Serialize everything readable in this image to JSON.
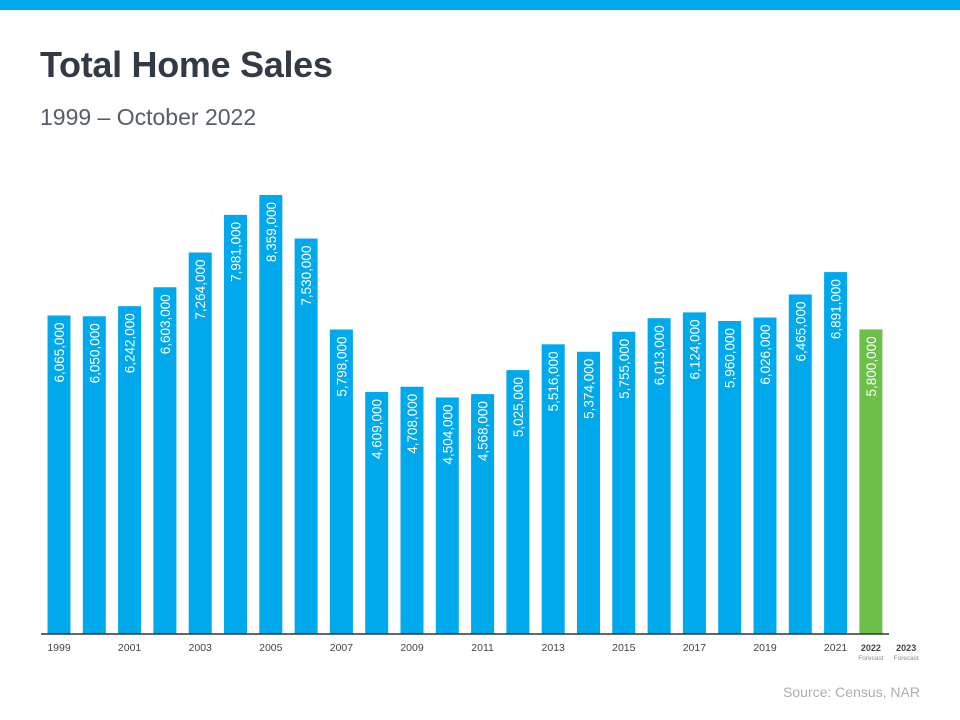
{
  "header": {
    "title": "Total Home Sales",
    "subtitle": "1999 – October 2022"
  },
  "footer": {
    "source": "Source: Census, NAR"
  },
  "colors": {
    "actual": "#00a8ec",
    "forecast": "#6cc04a",
    "axis": "#333333",
    "tick_text": "#444444",
    "stripe": "#00a8ec"
  },
  "chart_data": {
    "type": "bar",
    "title": "Total Home Sales",
    "subtitle": "1999 – October 2022",
    "categories": [
      "1999",
      "2000",
      "2001",
      "2002",
      "2003",
      "2004",
      "2005",
      "2006",
      "2007",
      "2008",
      "2009",
      "2010",
      "2011",
      "2012",
      "2013",
      "2014",
      "2015",
      "2016",
      "2017",
      "2018",
      "2019",
      "2020",
      "2021",
      "2022",
      "2023"
    ],
    "values": [
      6065000,
      6050000,
      6242000,
      6603000,
      7264000,
      7981000,
      8359000,
      7530000,
      5798000,
      4609000,
      4708000,
      4504000,
      4568000,
      5025000,
      5516000,
      5374000,
      5755000,
      6013000,
      6124000,
      5960000,
      6026000,
      6465000,
      6891000,
      5800000,
      null
    ],
    "value_labels": [
      "6,065,000",
      "6,050,000",
      "6,242,000",
      "6,603,000",
      "7,264,000",
      "7,981,000",
      "8,359,000",
      "7,530,000",
      "5,798,000",
      "4,609,000",
      "4,708,000",
      "4,504,000",
      "4,568,000",
      "5,025,000",
      "5,516,000",
      "5,374,000",
      "5,755,000",
      "6,013,000",
      "6,124,000",
      "5,960,000",
      "6,026,000",
      "6,465,000",
      "6,891,000",
      "5,800,000",
      ""
    ],
    "forecast": [
      false,
      false,
      false,
      false,
      false,
      false,
      false,
      false,
      false,
      false,
      false,
      false,
      false,
      false,
      false,
      false,
      false,
      false,
      false,
      false,
      false,
      false,
      false,
      true,
      true
    ],
    "tick_labels": [
      {
        "index": 0,
        "label": "1999"
      },
      {
        "index": 2,
        "label": "2001"
      },
      {
        "index": 4,
        "label": "2003"
      },
      {
        "index": 6,
        "label": "2005"
      },
      {
        "index": 8,
        "label": "2007"
      },
      {
        "index": 10,
        "label": "2009"
      },
      {
        "index": 12,
        "label": "2011"
      },
      {
        "index": 14,
        "label": "2013"
      },
      {
        "index": 16,
        "label": "2015"
      },
      {
        "index": 18,
        "label": "2017"
      },
      {
        "index": 20,
        "label": "2019"
      },
      {
        "index": 22,
        "label": "2021"
      },
      {
        "index": 23,
        "label": "2022",
        "note": "Forecast"
      },
      {
        "index": 24,
        "label": "2023",
        "note": "Forecast"
      }
    ],
    "ylim": [
      0,
      8359000
    ],
    "grid": false,
    "legend": "none",
    "xlabel": "",
    "ylabel": ""
  }
}
